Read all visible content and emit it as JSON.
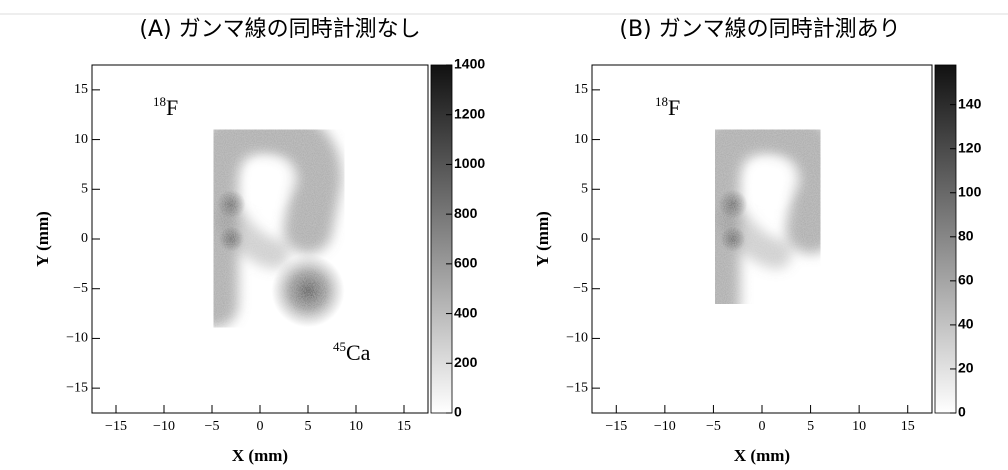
{
  "chart_data": [
    {
      "type": "heatmap",
      "title": "(A) ガンマ線の同時計測なし",
      "xlabel": "X (mm)",
      "ylabel": "Y (mm)",
      "xlim": [
        -17.5,
        17.5
      ],
      "ylim": [
        -17.5,
        17.5
      ],
      "xticks": [
        {
          "value": -15,
          "label": "−15"
        },
        {
          "value": -10,
          "label": "−10"
        },
        {
          "value": -5,
          "label": "−5"
        },
        0,
        5,
        10,
        15
      ],
      "yticks": [
        {
          "value": -15,
          "label": "−15"
        },
        {
          "value": -10,
          "label": "−10"
        },
        {
          "value": -5,
          "label": "−5"
        },
        0,
        5,
        10,
        15
      ],
      "zlim": [
        0,
        1400
      ],
      "zticks": [
        0,
        200,
        400,
        600,
        800,
        1000,
        1200,
        1400
      ],
      "annotations": [
        {
          "mass": "18",
          "symbol": "F"
        },
        {
          "mass": "45",
          "symbol": "Ca"
        }
      ]
    },
    {
      "type": "heatmap",
      "title": "(B) ガンマ線の同時計測あり",
      "xlabel": "X (mm)",
      "ylabel": "Y (mm)",
      "xlim": [
        -17.5,
        17.5
      ],
      "ylim": [
        -17.5,
        17.5
      ],
      "xticks": [
        {
          "value": -15,
          "label": "−15"
        },
        {
          "value": -10,
          "label": "−10"
        },
        {
          "value": -5,
          "label": "−5"
        },
        0,
        5,
        10,
        15
      ],
      "yticks": [
        {
          "value": -15,
          "label": "−15"
        },
        {
          "value": -10,
          "label": "−10"
        },
        {
          "value": -5,
          "label": "−5"
        },
        0,
        5,
        10,
        15
      ],
      "zlim": [
        0,
        158
      ],
      "zticks": [
        0,
        20,
        40,
        60,
        80,
        100,
        120,
        140
      ],
      "annotations": [
        {
          "mass": "18",
          "symbol": "F"
        }
      ]
    }
  ]
}
